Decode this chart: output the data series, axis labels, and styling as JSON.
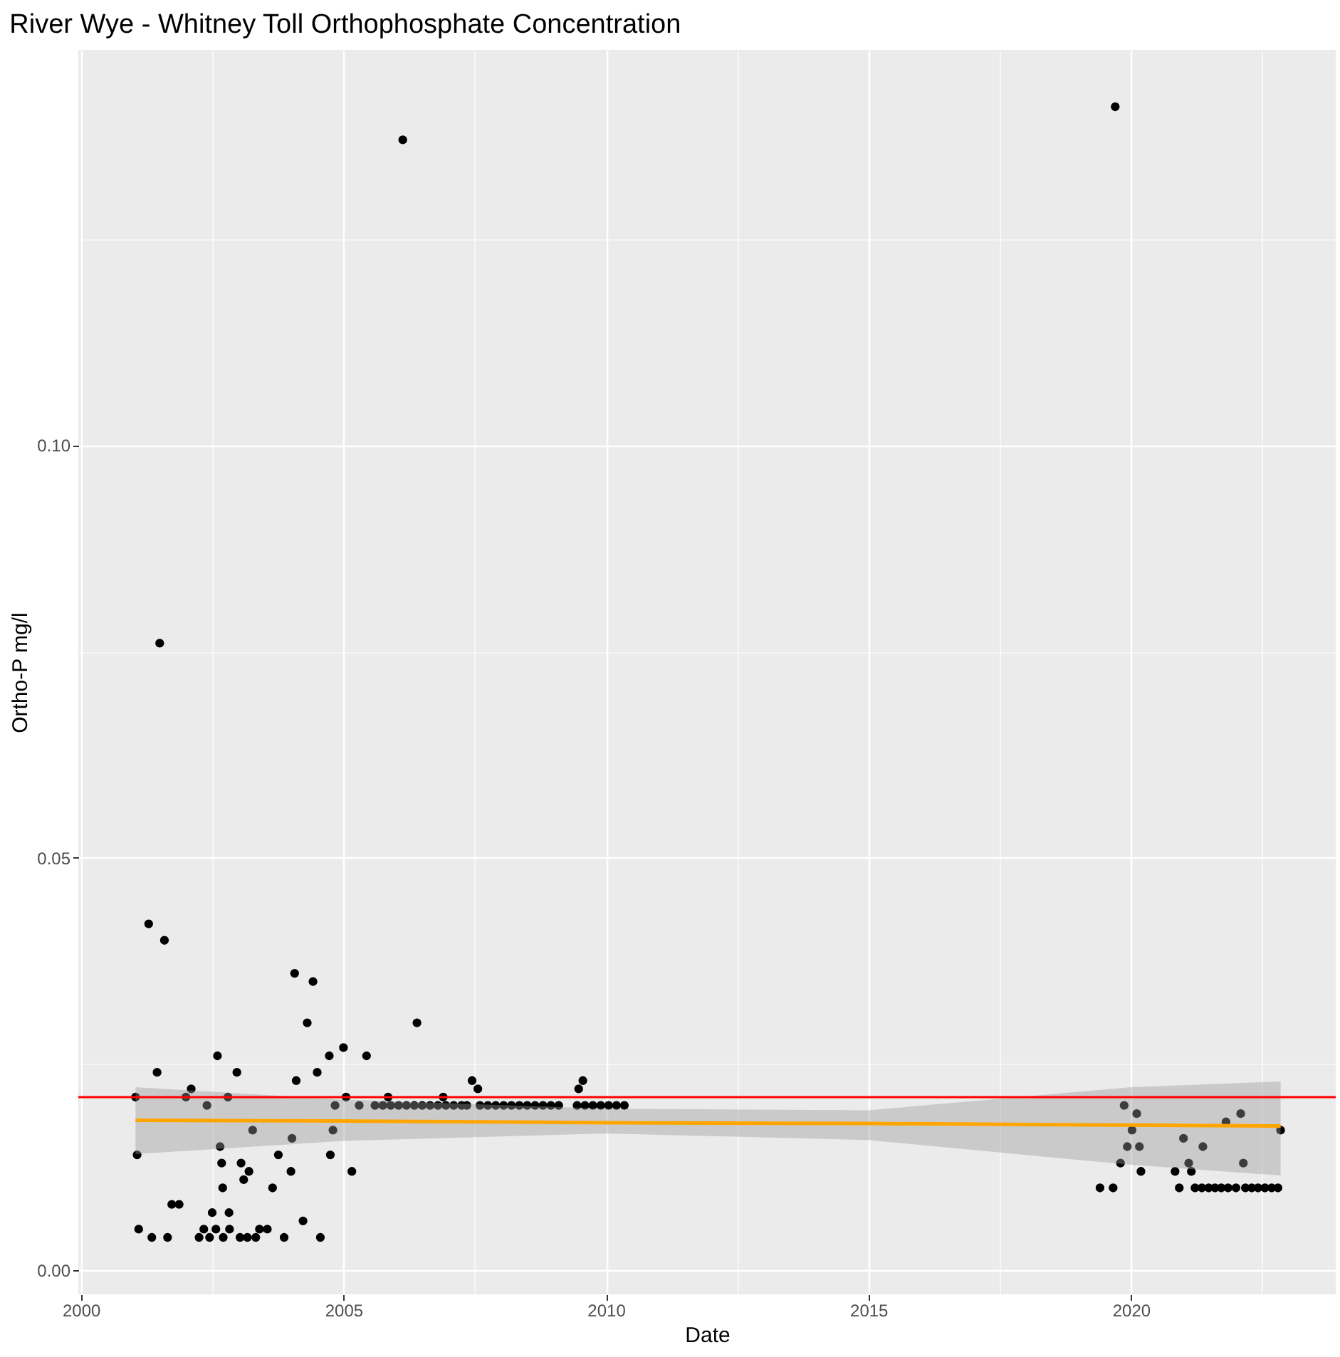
{
  "chart_data": {
    "type": "scatter",
    "title": "River Wye - Whitney Toll Orthophosphate Concentration",
    "xlabel": "Date",
    "ylabel": "Ortho-P mg/l",
    "xlim": [
      1999.95,
      2023.9
    ],
    "ylim": [
      -0.0029,
      0.1479
    ],
    "xticks": [
      {
        "value": 2000,
        "label": "2000"
      },
      {
        "value": 2002.5,
        "label": null
      },
      {
        "value": 2005,
        "label": "2005"
      },
      {
        "value": 2007.5,
        "label": null
      },
      {
        "value": 2010,
        "label": "2010"
      },
      {
        "value": 2012.5,
        "label": null
      },
      {
        "value": 2015,
        "label": "2015"
      },
      {
        "value": 2017.5,
        "label": null
      },
      {
        "value": 2020,
        "label": "2020"
      },
      {
        "value": 2022.5,
        "label": null
      }
    ],
    "yticks": [
      {
        "value": 0,
        "label": "0.00"
      },
      {
        "value": 0.025,
        "label": null
      },
      {
        "value": 0.05,
        "label": "0.05"
      },
      {
        "value": 0.075,
        "label": null
      },
      {
        "value": 0.1,
        "label": "0.10"
      },
      {
        "value": 0.125,
        "label": null
      }
    ],
    "grid": true,
    "ref_lines": [
      {
        "axis": "y",
        "value": 0.021,
        "color": "#ff0000"
      }
    ],
    "series": [
      {
        "color": "#000000",
        "marker": "circle",
        "x": [
          2001.04,
          2001.07,
          2001.1,
          2001.29,
          2001.35,
          2001.45,
          2001.5,
          2001.59,
          2001.65,
          2001.73,
          2001.87,
          2002.0,
          2002.1,
          2002.25,
          2002.34,
          2002.4,
          2002.45,
          2002.5,
          2002.57,
          2002.6,
          2002.65,
          2002.68,
          2002.7,
          2002.71,
          2002.8,
          2002.82,
          2002.83,
          2002.97,
          2003.03,
          2003.05,
          2003.1,
          2003.17,
          2003.2,
          2003.27,
          2003.33,
          2003.4,
          2003.55,
          2003.65,
          2003.76,
          2003.87,
          2004.0,
          2004.02,
          2004.07,
          2004.1,
          2004.23,
          2004.31,
          2004.42,
          2004.5,
          2004.56,
          2004.73,
          2004.75,
          2004.8,
          2004.84,
          2005.0,
          2005.05,
          2005.16,
          2005.44,
          2005.85,
          2006.13,
          2006.4,
          2006.9,
          2007.45,
          2007.56,
          2009.48,
          2009.56,
          2005.3,
          2005.6,
          2005.75,
          2005.9,
          2006.05,
          2006.2,
          2006.35,
          2006.5,
          2006.65,
          2006.8,
          2006.95,
          2007.1,
          2007.25,
          2007.35,
          2007.6,
          2007.75,
          2007.9,
          2008.05,
          2008.2,
          2008.35,
          2008.5,
          2008.65,
          2008.8,
          2008.95,
          2009.1,
          2009.45,
          2009.6,
          2009.75,
          2009.9,
          2010.05,
          2010.2,
          2010.35,
          2019.41,
          2019.66,
          2019.7,
          2019.8,
          2019.87,
          2019.93,
          2020.02,
          2020.11,
          2020.16,
          2020.19,
          2020.84,
          2020.92,
          2021.0,
          2021.1,
          2021.15,
          2021.37,
          2021.81,
          2022.09,
          2022.14,
          2022.85,
          2021.22,
          2021.35,
          2021.48,
          2021.6,
          2021.72,
          2021.85,
          2022.0,
          2022.18,
          2022.3,
          2022.42,
          2022.55,
          2022.68,
          2022.8
        ],
        "values": [
          0.021,
          0.014,
          0.005,
          0.042,
          0.004,
          0.024,
          0.076,
          0.04,
          0.004,
          0.008,
          0.008,
          0.021,
          0.022,
          0.004,
          0.005,
          0.02,
          0.004,
          0.007,
          0.005,
          0.026,
          0.015,
          0.013,
          0.01,
          0.004,
          0.021,
          0.007,
          0.005,
          0.024,
          0.004,
          0.013,
          0.011,
          0.004,
          0.012,
          0.017,
          0.004,
          0.005,
          0.005,
          0.01,
          0.014,
          0.004,
          0.012,
          0.016,
          0.036,
          0.023,
          0.006,
          0.03,
          0.035,
          0.024,
          0.004,
          0.026,
          0.014,
          0.017,
          0.02,
          0.027,
          0.021,
          0.012,
          0.026,
          0.021,
          0.137,
          0.03,
          0.021,
          0.023,
          0.022,
          0.022,
          0.023,
          0.02,
          0.02,
          0.02,
          0.02,
          0.02,
          0.02,
          0.02,
          0.02,
          0.02,
          0.02,
          0.02,
          0.02,
          0.02,
          0.02,
          0.02,
          0.02,
          0.02,
          0.02,
          0.02,
          0.02,
          0.02,
          0.02,
          0.02,
          0.02,
          0.02,
          0.02,
          0.02,
          0.02,
          0.02,
          0.02,
          0.02,
          0.02,
          0.01,
          0.01,
          0.141,
          0.013,
          0.02,
          0.015,
          0.017,
          0.019,
          0.015,
          0.012,
          0.012,
          0.01,
          0.016,
          0.013,
          0.012,
          0.015,
          0.018,
          0.019,
          0.013,
          0.017,
          0.01,
          0.01,
          0.01,
          0.01,
          0.01,
          0.01,
          0.01,
          0.01,
          0.01,
          0.01,
          0.01,
          0.01,
          0.01
        ]
      },
      {
        "type": "line",
        "color": "#ffa500",
        "marker": "none",
        "x": [
          2001.04,
          2005,
          2010,
          2015,
          2020,
          2022.85
        ],
        "values": [
          0.0182,
          0.0181,
          0.0179,
          0.0178,
          0.0176,
          0.0175
        ],
        "lower": [
          0.0141,
          0.0157,
          0.0166,
          0.0158,
          0.0128,
          0.0115
        ],
        "upper": [
          0.0222,
          0.0207,
          0.0196,
          0.0194,
          0.0222,
          0.0229
        ]
      }
    ]
  }
}
